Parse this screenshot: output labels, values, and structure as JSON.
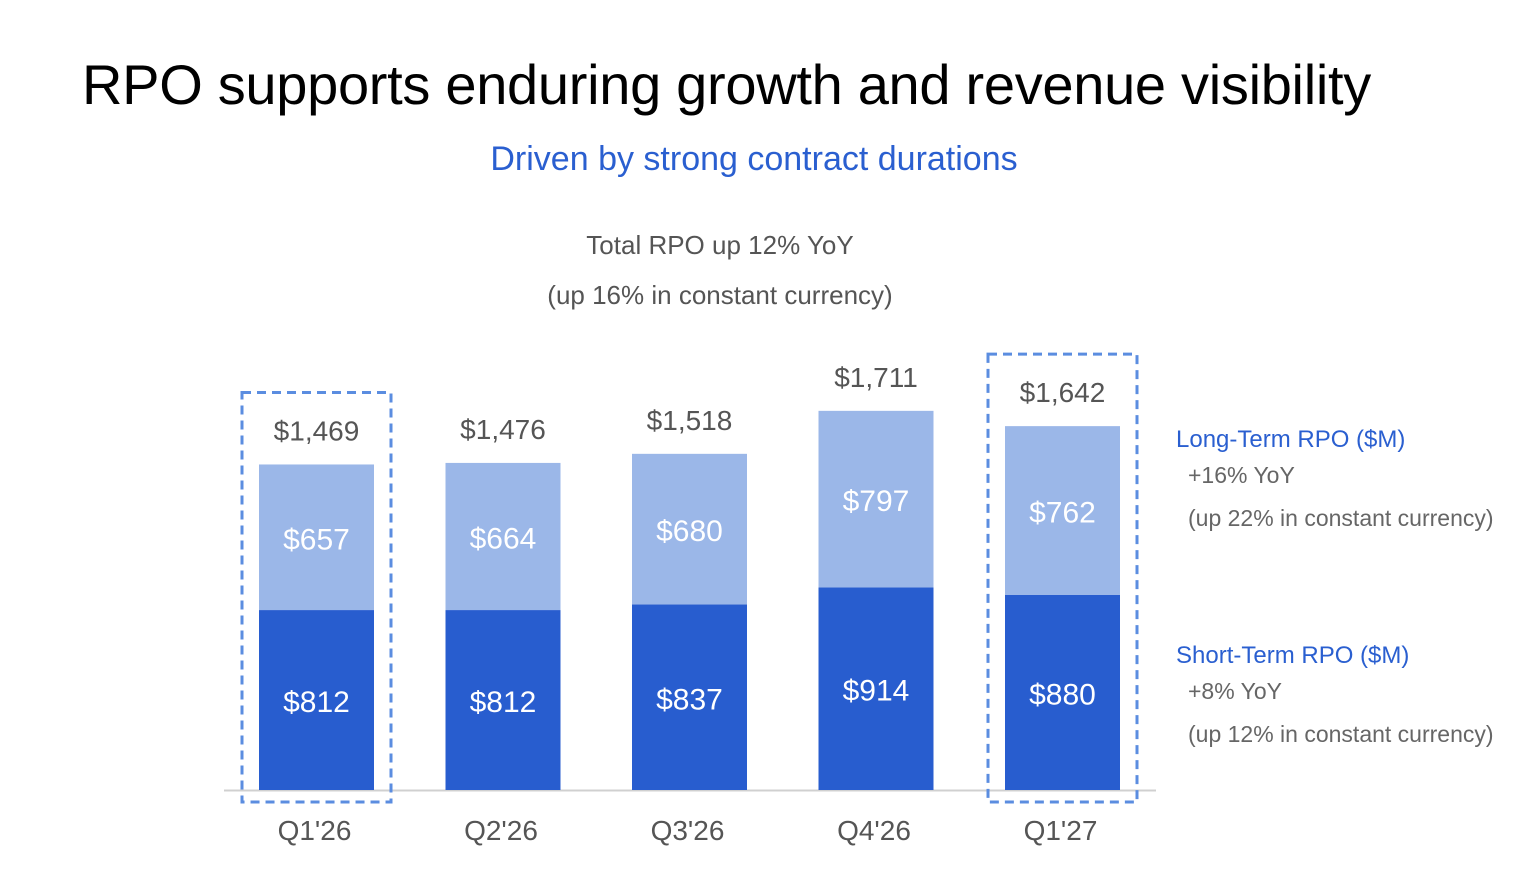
{
  "title": "RPO supports enduring growth and revenue visibility",
  "subtitle": "Driven by strong contract durations",
  "total_note": {
    "line1": "Total RPO up 12% YoY",
    "line2": "(up 16% in constant currency)"
  },
  "legend": {
    "long_term": {
      "title": "Long-Term RPO ($M)",
      "yoy": "+16% YoY",
      "cc": "(up 22% in constant currency)"
    },
    "short_term": {
      "title": "Short-Term RPO ($M)",
      "yoy": "+8% YoY",
      "cc": "(up 12% in constant currency)"
    }
  },
  "colors": {
    "accent": "#2a5fd0",
    "long_term": "#9bb7e8",
    "short_term": "#285dcf",
    "highlight_border": "#5b8de0",
    "total_label": "#555555",
    "tick_label": "#555555",
    "axis": "#d0d0d0"
  },
  "chart_data": {
    "type": "bar",
    "stacked": true,
    "categories": [
      "Q1'26",
      "Q2'26",
      "Q3'26",
      "Q4'26",
      "Q1'27"
    ],
    "series": [
      {
        "name": "Short-Term RPO ($M)",
        "values": [
          812,
          812,
          837,
          914,
          880
        ],
        "labels": [
          "$812",
          "$812",
          "$837",
          "$914",
          "$880"
        ]
      },
      {
        "name": "Long-Term RPO ($M)",
        "values": [
          657,
          664,
          680,
          797,
          762
        ],
        "labels": [
          "$657",
          "$664",
          "$680",
          "$797",
          "$762"
        ]
      }
    ],
    "totals": [
      1469,
      1476,
      1518,
      1711,
      1642
    ],
    "total_labels": [
      "$1,469",
      "$1,476",
      "$1,518",
      "$1,711",
      "$1,642"
    ],
    "highlighted": [
      "Q1'26",
      "Q1'27"
    ],
    "grid": false,
    "ylim": [
      0,
      1711
    ]
  }
}
